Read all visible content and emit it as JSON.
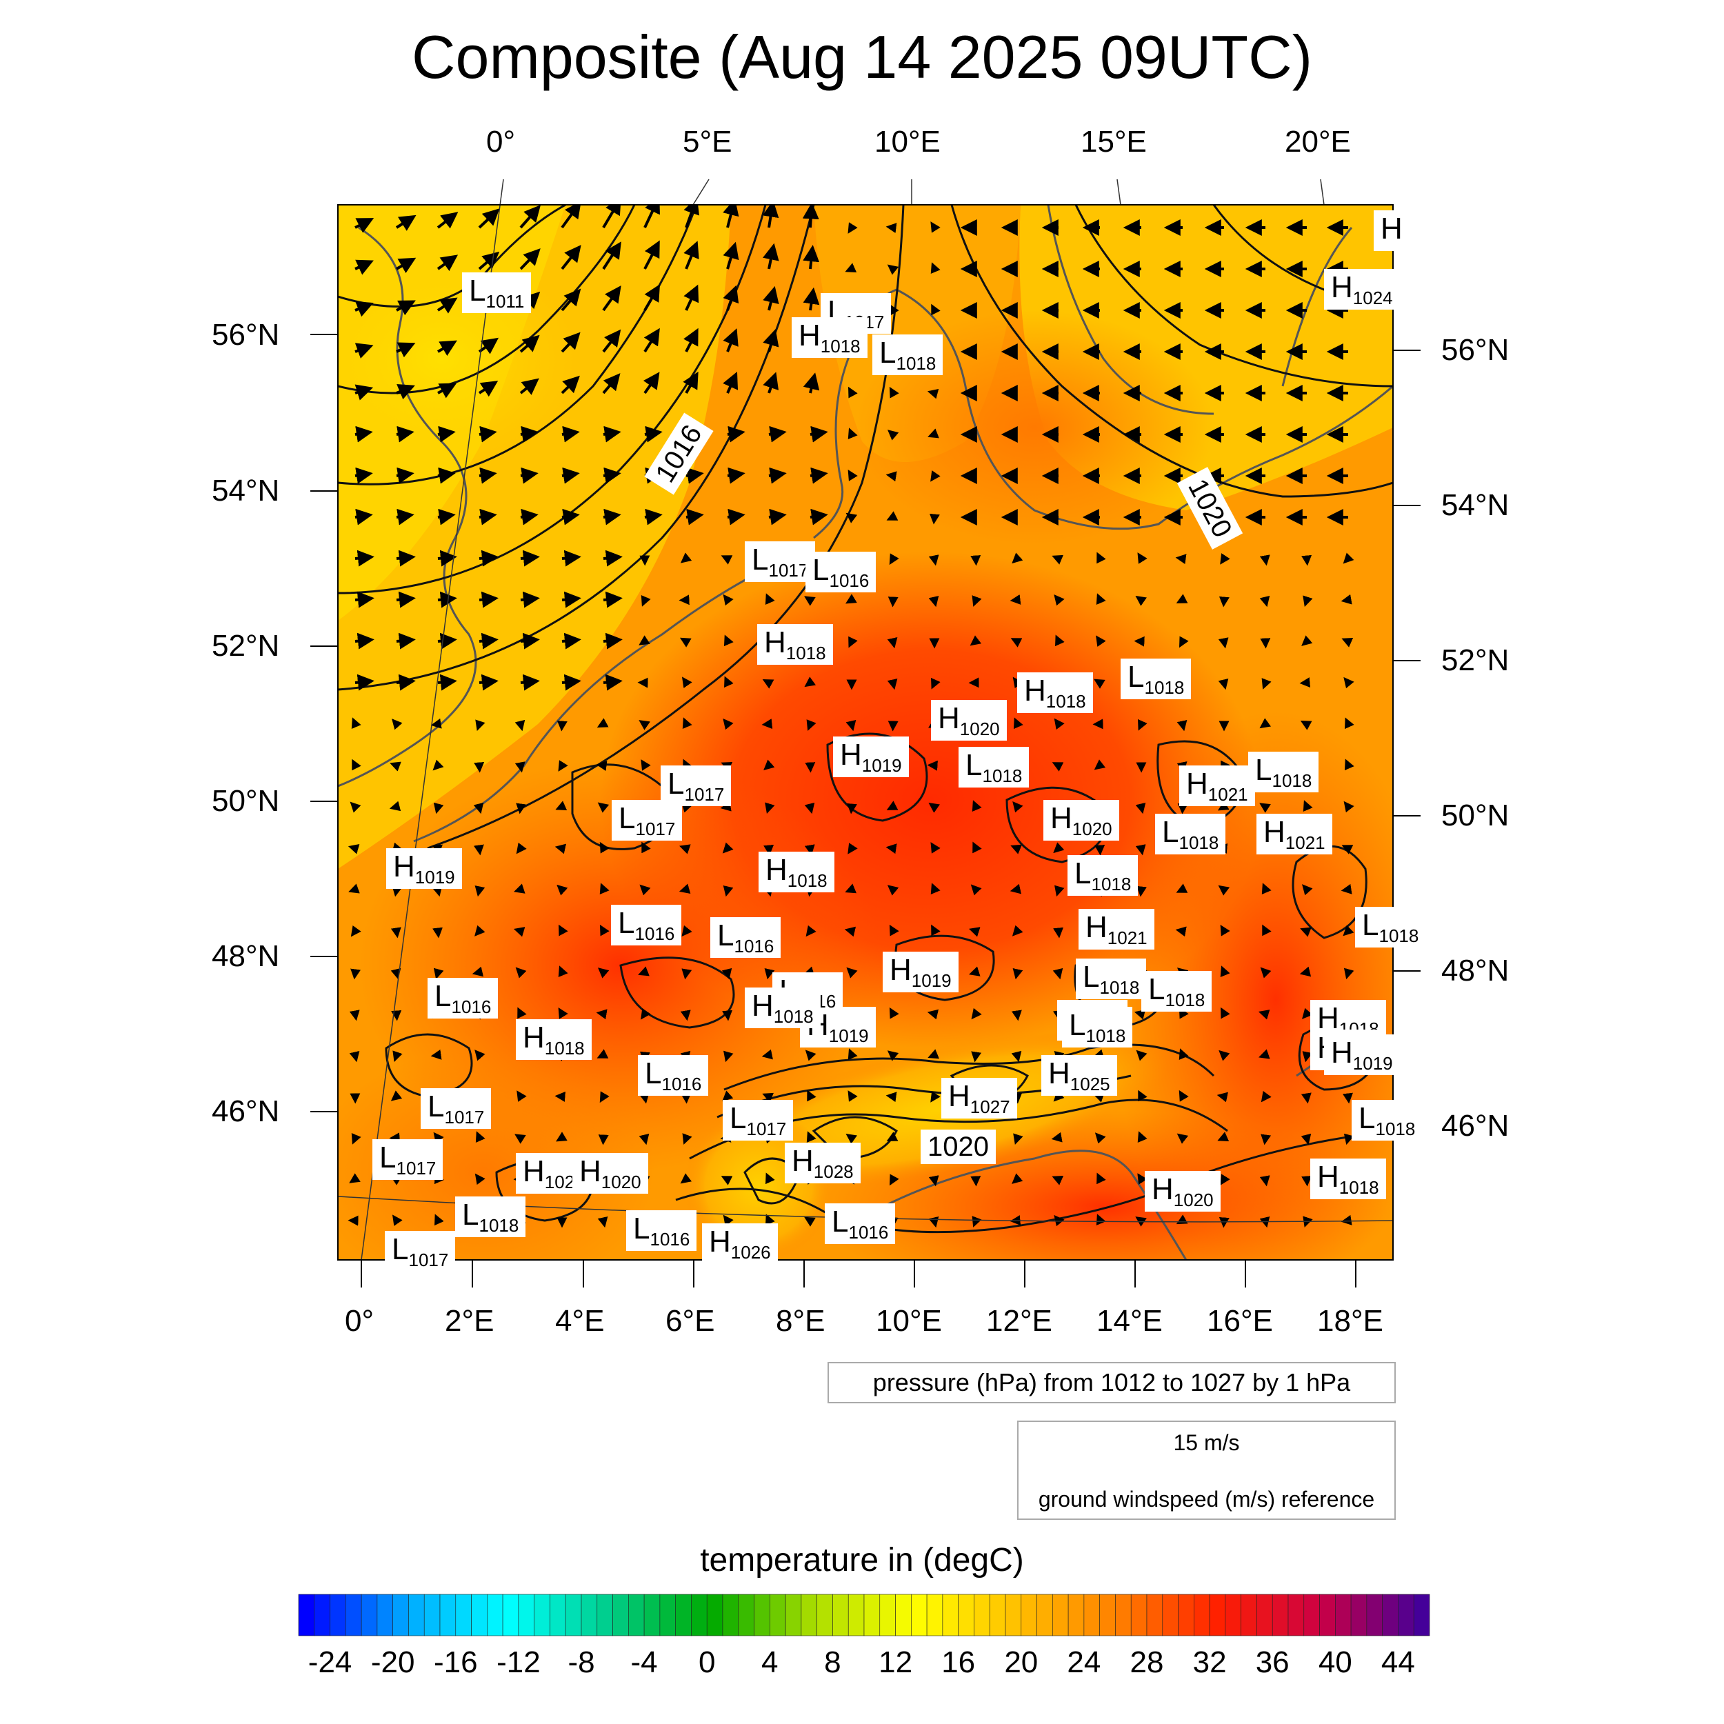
{
  "title": "Composite (Aug 14 2025 09UTC)",
  "colors": {
    "warm": "#ffbe00",
    "hot": "#ff3a00",
    "cool": "#ffd800",
    "land": "#ff8800",
    "contour": "#111111",
    "coast": "#555555"
  },
  "top_lon_labels": [
    "0°",
    "5°E",
    "10°E",
    "15°E",
    "20°E"
  ],
  "bottom_lon_labels": [
    "0°",
    "2°E",
    "4°E",
    "6°E",
    "8°E",
    "10°E",
    "12°E",
    "14°E",
    "16°E",
    "18°E"
  ],
  "left_lat_labels": [
    "56°N",
    "54°N",
    "52°N",
    "50°N",
    "48°N",
    "46°N"
  ],
  "right_lat_labels": [
    "56°N",
    "54°N",
    "52°N",
    "50°N",
    "48°N",
    "46°N"
  ],
  "pressure_centers": [
    {
      "t": "L",
      "v": "1011"
    },
    {
      "t": "L",
      "v": "1017"
    },
    {
      "t": "H",
      "v": "1018"
    },
    {
      "t": "L",
      "v": "1018"
    },
    {
      "t": "H",
      "v": "1024"
    },
    {
      "t": "H",
      "v": ""
    },
    {
      "t": "L",
      "v": "1017"
    },
    {
      "t": "L",
      "v": "1016"
    },
    {
      "t": "H",
      "v": "1018"
    },
    {
      "t": "H",
      "v": "1018"
    },
    {
      "t": "L",
      "v": "1018"
    },
    {
      "t": "H",
      "v": "1020"
    },
    {
      "t": "H",
      "v": "1019"
    },
    {
      "t": "L",
      "v": "1018"
    },
    {
      "t": "L",
      "v": "1017"
    },
    {
      "t": "L",
      "v": "1017"
    },
    {
      "t": "H",
      "v": "1021"
    },
    {
      "t": "L",
      "v": "1018"
    },
    {
      "t": "H",
      "v": "1020"
    },
    {
      "t": "L",
      "v": "1018"
    },
    {
      "t": "H",
      "v": "1021"
    },
    {
      "t": "H",
      "v": "1019"
    },
    {
      "t": "H",
      "v": "1018"
    },
    {
      "t": "L",
      "v": "1018"
    },
    {
      "t": "L",
      "v": "1016"
    },
    {
      "t": "L",
      "v": "1016"
    },
    {
      "t": "H",
      "v": "1021"
    },
    {
      "t": "H",
      "v": "1019"
    },
    {
      "t": "L",
      "v": "1016"
    },
    {
      "t": "L",
      "v": "1018"
    },
    {
      "t": "L",
      "v": "1018"
    },
    {
      "t": "L",
      "v": "1017"
    },
    {
      "t": "H",
      "v": "1019"
    },
    {
      "t": "L",
      "v": "1018"
    },
    {
      "t": "H",
      "v": "1018"
    },
    {
      "t": "H",
      "v": "1019"
    },
    {
      "t": "H",
      "v": "1018"
    },
    {
      "t": "L",
      "v": "1016"
    },
    {
      "t": "H",
      "v": "1025"
    },
    {
      "t": "H",
      "v": "1027"
    },
    {
      "t": "L",
      "v": "1017"
    },
    {
      "t": "L",
      "v": "1017"
    },
    {
      "t": "L",
      "v": "1017"
    },
    {
      "t": "H",
      "v": "1028"
    },
    {
      "t": "H",
      "v": "102"
    },
    {
      "t": "H",
      "v": "1020"
    },
    {
      "t": "H",
      "v": "1020"
    },
    {
      "t": "H",
      "v": "1018"
    },
    {
      "t": "L",
      "v": "1018"
    },
    {
      "t": "L",
      "v": "1016"
    },
    {
      "t": "H",
      "v": "1026"
    },
    {
      "t": "L",
      "v": "1016"
    },
    {
      "t": "L",
      "v": "1017"
    },
    {
      "t": "L",
      "v": "1016"
    },
    {
      "t": "H",
      "v": "1018"
    },
    {
      "t": "L",
      "v": "1018"
    },
    {
      "t": "L",
      "v": "1018"
    },
    {
      "t": "L",
      "v": "1018"
    },
    {
      "t": "H",
      "v": "1019"
    }
  ],
  "contour_labels": [
    "1016",
    "1020",
    "1020"
  ],
  "pressure_info": "pressure (hPa) from 1012 to 1027 by 1 hPa",
  "wind_reference": {
    "speed": "15 m/s",
    "description": "ground windspeed (m/s) reference"
  },
  "colorbar": {
    "title": "temperature in (degC)",
    "min": -26,
    "max": 46,
    "ticks": [
      "-24",
      "-20",
      "-16",
      "-12",
      "-8",
      "-4",
      "0",
      "4",
      "8",
      "12",
      "16",
      "20",
      "24",
      "28",
      "32",
      "36",
      "40",
      "44"
    ],
    "stops": [
      "#0000ff",
      "#00aaff",
      "#00ffff",
      "#00cc88",
      "#00aa00",
      "#aadd00",
      "#ffff00",
      "#ffc000",
      "#ff8000",
      "#ff2000",
      "#cc0044",
      "#440099"
    ]
  }
}
